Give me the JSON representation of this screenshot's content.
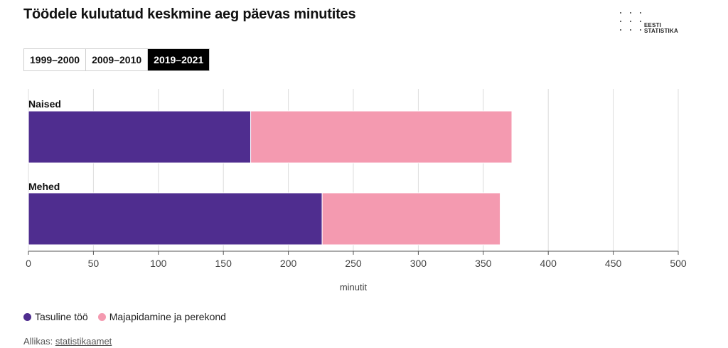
{
  "title": "Töödele kulutatud keskmine aeg päevas minutites",
  "logo": {
    "line1": "EESTI",
    "line2": "STATISTIKA"
  },
  "tabs": [
    {
      "label": "1999–2000",
      "active": false
    },
    {
      "label": "2009–2010",
      "active": false
    },
    {
      "label": "2019–2021",
      "active": true
    }
  ],
  "chart_data": {
    "type": "bar",
    "orientation": "horizontal",
    "stacked": true,
    "categories": [
      "Naised",
      "Mehed"
    ],
    "series": [
      {
        "name": "Tasuline töö",
        "values": [
          171,
          226
        ],
        "color": "#4f2d8f"
      },
      {
        "name": "Majapidamine ja perekond",
        "values": [
          201,
          137
        ],
        "color": "#f49ab0"
      }
    ],
    "xlabel": "minutit",
    "xlim": [
      0,
      500
    ],
    "xticks": [
      0,
      50,
      100,
      150,
      200,
      250,
      300,
      350,
      400,
      450,
      500
    ],
    "grid": true,
    "legend_position": "bottom-left"
  },
  "legend": [
    {
      "label": "Tasuline töö",
      "color": "#4f2d8f"
    },
    {
      "label": "Majapidamine ja perekond",
      "color": "#f49ab0"
    }
  ],
  "source": {
    "prefix": "Allikas:",
    "link": "statistikaamet"
  }
}
